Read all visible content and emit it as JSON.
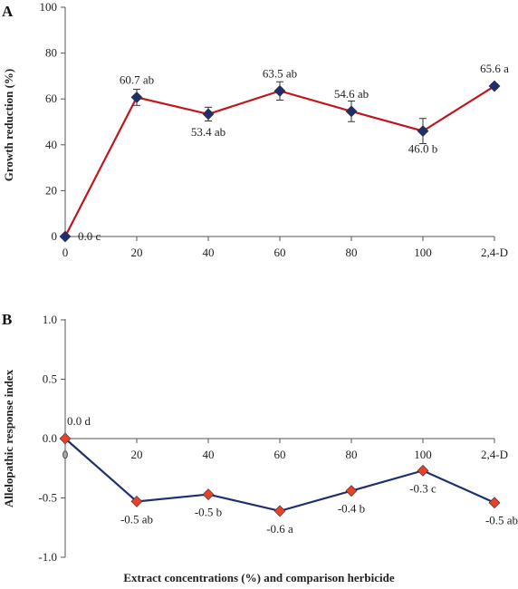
{
  "chart_data": [
    {
      "type": "line",
      "panel": "A",
      "ylabel": "Growth reduction (%)",
      "categories": [
        "0",
        "20",
        "40",
        "60",
        "80",
        "100",
        "2,4-D"
      ],
      "ylim": [
        0,
        100
      ],
      "yticks": [
        "0",
        "20",
        "40",
        "60",
        "80",
        "100"
      ],
      "series": [
        {
          "values": [
            0.0,
            60.7,
            53.4,
            63.5,
            54.6,
            46.0,
            65.6
          ],
          "errors": [
            0.5,
            3.5,
            3.0,
            4.0,
            4.5,
            5.5,
            1.0
          ],
          "labels": [
            "0.0 c",
            "60.7 ab",
            "53.4 ab",
            "63.5 ab",
            "54.6 ab",
            "46.0 b",
            "65.6 a"
          ],
          "label_pos": [
            "right",
            "above",
            "below",
            "above",
            "above",
            "below",
            "above"
          ]
        }
      ],
      "colors": {
        "line": "#c0151b",
        "marker": "#1f2f6e"
      }
    },
    {
      "type": "line",
      "panel": "B",
      "ylabel": "Allelopathic response index",
      "categories": [
        "0",
        "20",
        "40",
        "60",
        "80",
        "100",
        "2,4-D"
      ],
      "ylim": [
        -1.0,
        1.0
      ],
      "yticks": [
        "-1.0",
        "-0.5",
        "0.0",
        "0.5",
        "1.0"
      ],
      "series": [
        {
          "values": [
            0.0,
            -0.53,
            -0.47,
            -0.61,
            -0.44,
            -0.27,
            -0.54
          ],
          "labels": [
            "0.0 d",
            "-0.5 ab",
            "-0.5 b",
            "-0.6 a",
            "-0.4 b",
            "-0.3 c",
            "-0.5 ab"
          ],
          "label_pos": [
            "above",
            "below",
            "below",
            "below",
            "below",
            "below",
            "below"
          ]
        }
      ],
      "colors": {
        "line": "#1f2f6e",
        "marker": "#e8412a"
      }
    }
  ],
  "xlabel": "Extract concentrations (%) and comparison herbicide"
}
